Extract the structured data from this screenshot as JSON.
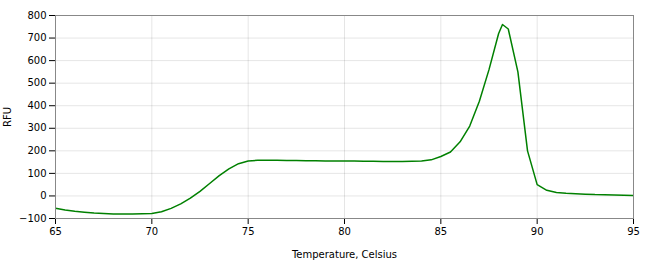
{
  "chart_data": {
    "type": "line",
    "xlabel": "Temperature, Celsius",
    "ylabel": "RFU",
    "x": [
      65,
      65.5,
      66,
      66.5,
      67,
      67.5,
      68,
      68.5,
      69,
      69.5,
      70,
      70.5,
      71,
      71.5,
      72,
      72.5,
      73,
      73.5,
      74,
      74.5,
      75,
      75.5,
      76,
      76.5,
      77,
      77.5,
      78,
      78.5,
      79,
      79.5,
      80,
      80.5,
      81,
      81.5,
      82,
      82.5,
      83,
      83.5,
      84,
      84.5,
      85,
      85.5,
      86,
      86.5,
      87,
      87.5,
      88,
      88.2,
      88.5,
      89,
      89.5,
      90,
      90.5,
      91,
      91.5,
      92,
      92.5,
      93,
      93.5,
      94,
      94.5,
      95
    ],
    "values": [
      -55,
      -62,
      -68,
      -72,
      -76,
      -78,
      -80,
      -80,
      -80,
      -79,
      -78,
      -70,
      -55,
      -35,
      -10,
      20,
      55,
      90,
      120,
      143,
      155,
      158,
      158,
      158,
      157,
      157,
      156,
      156,
      155,
      155,
      155,
      155,
      154,
      154,
      153,
      153,
      153,
      154,
      155,
      160,
      175,
      195,
      240,
      310,
      420,
      560,
      720,
      760,
      740,
      550,
      200,
      50,
      25,
      15,
      12,
      10,
      8,
      6,
      5,
      4,
      3,
      2
    ],
    "color": "#008000",
    "xlim": [
      65,
      95
    ],
    "ylim": [
      -100,
      800
    ],
    "xticks": [
      65,
      70,
      75,
      80,
      85,
      90,
      95
    ],
    "yticks": [
      -100,
      0,
      100,
      200,
      300,
      400,
      500,
      600,
      700,
      800
    ],
    "grid": true
  }
}
